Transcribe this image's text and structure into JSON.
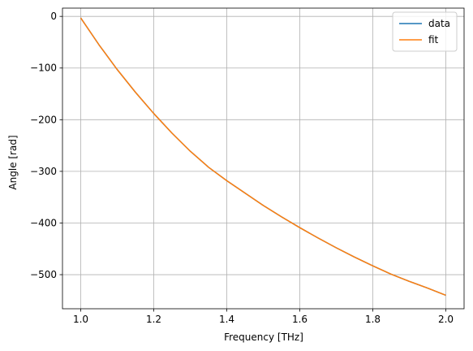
{
  "chart_data": {
    "type": "line",
    "title": "",
    "xlabel": "Frequency [THz]",
    "ylabel": "Angle [rad]",
    "xlim": [
      0.95,
      2.05
    ],
    "ylim": [
      -566,
      16
    ],
    "xticks": [
      1.0,
      1.2,
      1.4,
      1.6,
      1.8,
      2.0
    ],
    "xtick_labels": [
      "1.0",
      "1.2",
      "1.4",
      "1.6",
      "1.8",
      "2.0"
    ],
    "yticks": [
      0,
      -100,
      -200,
      -300,
      -400,
      -500
    ],
    "ytick_labels": [
      "0",
      "−100",
      "−200",
      "−300",
      "−400",
      "−500"
    ],
    "grid": true,
    "legend_position": "top-right",
    "x": [
      1.0,
      1.05,
      1.1,
      1.15,
      1.2,
      1.25,
      1.3,
      1.35,
      1.4,
      1.45,
      1.5,
      1.55,
      1.6,
      1.65,
      1.7,
      1.75,
      1.8,
      1.85,
      1.9,
      1.95,
      2.0
    ],
    "series": [
      {
        "name": "data",
        "color": "#1f77b4",
        "values": [
          -3,
          -55,
          -103,
          -147,
          -188,
          -226,
          -261,
          -292,
          -318,
          -342,
          -366,
          -388,
          -409,
          -429,
          -448,
          -466,
          -483,
          -499,
          -513,
          -526,
          -540
        ]
      },
      {
        "name": "fit",
        "color": "#ff7f0e",
        "values": [
          -3,
          -55,
          -103,
          -147,
          -188,
          -226,
          -261,
          -292,
          -318,
          -342,
          -366,
          -388,
          -409,
          -429,
          -448,
          -466,
          -483,
          -499,
          -513,
          -526,
          -540
        ]
      }
    ]
  }
}
